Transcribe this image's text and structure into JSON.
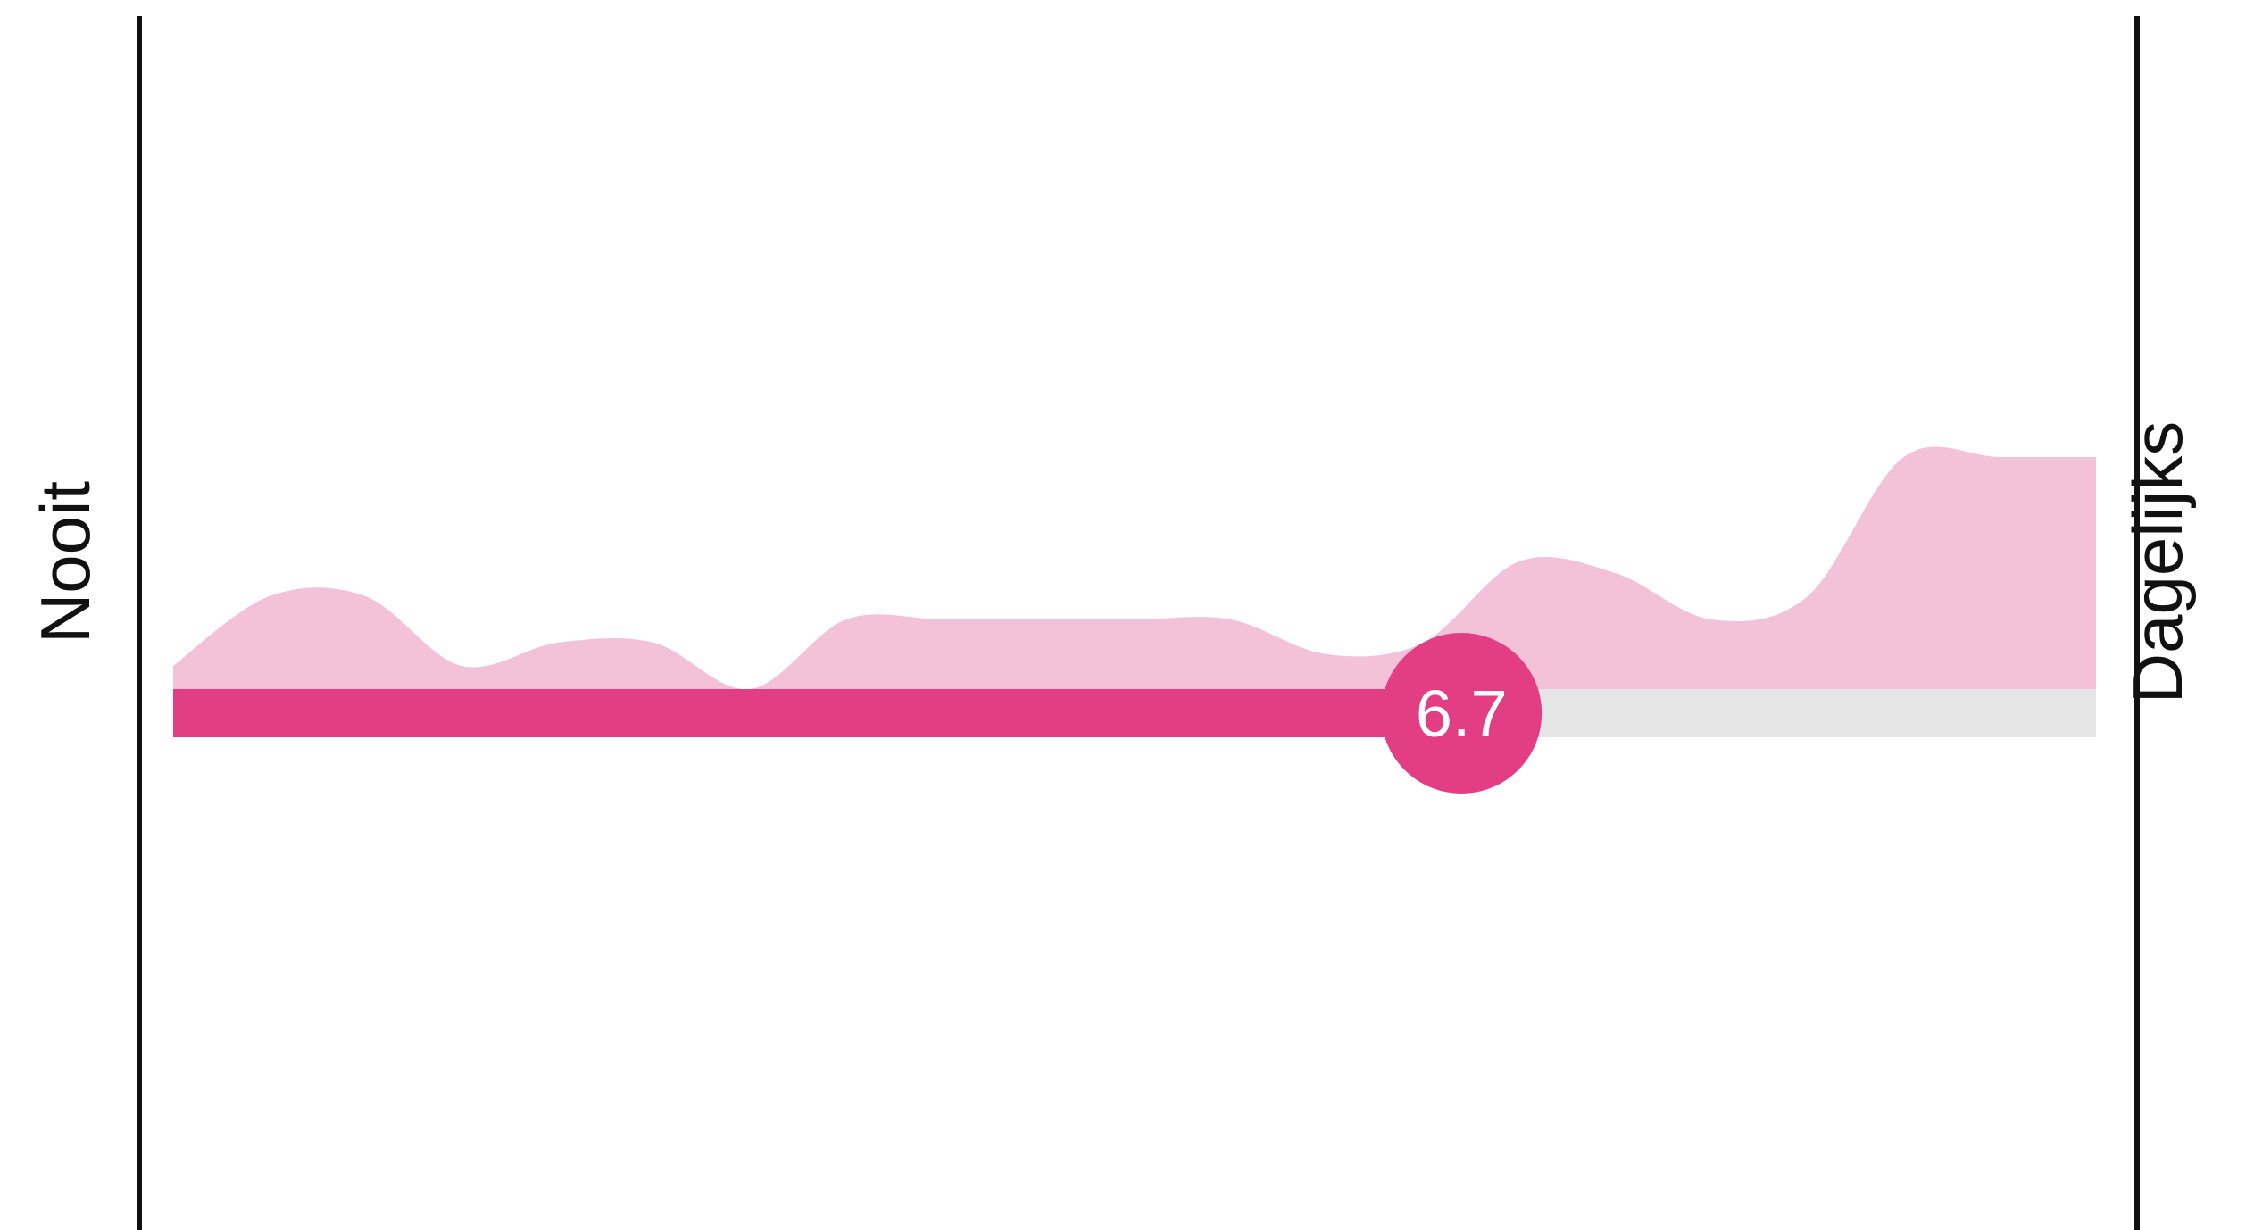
{
  "chart_data": {
    "type": "area",
    "min_label": "Nooit",
    "max_label": "Dagelijks",
    "value": 6.7,
    "value_label": "6.7",
    "range": [
      0,
      10
    ],
    "distribution": {
      "x": [
        0,
        0.5,
        1,
        1.5,
        2,
        2.5,
        3,
        3.5,
        4,
        4.5,
        5,
        5.5,
        6,
        6.5,
        7,
        7.5,
        8,
        8.5,
        9,
        9.5,
        10
      ],
      "y": [
        0.1,
        0.4,
        0.4,
        0.1,
        0.2,
        0.2,
        0.0,
        0.3,
        0.3,
        0.3,
        0.3,
        0.3,
        0.15,
        0.2,
        0.55,
        0.5,
        0.3,
        0.4,
        1.0,
        1.0,
        1.0
      ]
    },
    "colors": {
      "fill": "#e33d84",
      "distribution": "#f4c2d8",
      "track": "#e6e6e6",
      "axis": "#111111",
      "thumb_text": "#ffffff"
    }
  }
}
